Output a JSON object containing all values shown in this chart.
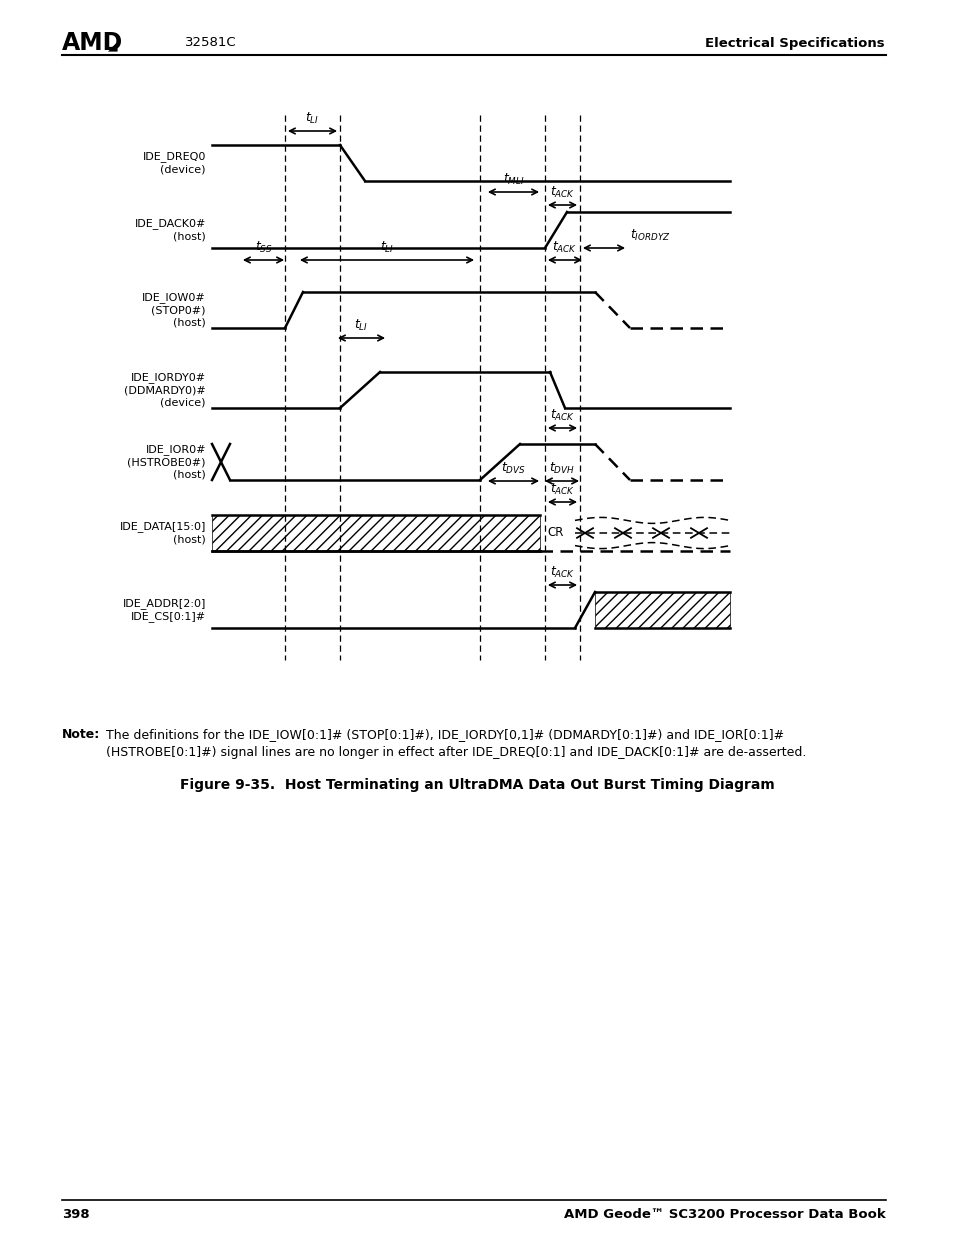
{
  "title": "Figure 9-35.  Host Terminating an UltraDMA Data Out Burst Timing Diagram",
  "background": "#ffffff",
  "line_color": "#000000",
  "signal_labels": [
    "IDE_DREQ0\n(device)",
    "IDE_DACK0#\n(host)",
    "IDE_IOW0#\n(STOP0#)\n(host)",
    "IDE_IORDY0#\n(DDMARDY0)#\n(device)",
    "IDE_IOR0#\n(HSTROBE0#)\n(host)",
    "IDE_DATA[15:0]\n(host)",
    "IDE_ADDR[2:0]\nIDE_CS[0:1]#"
  ]
}
